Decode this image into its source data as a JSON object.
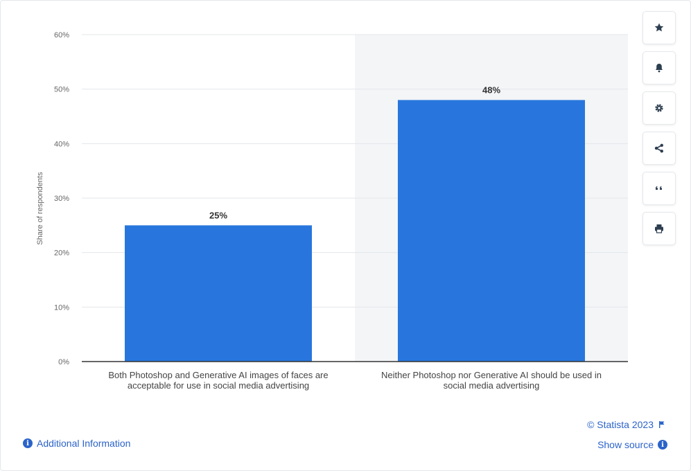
{
  "chart_data": {
    "type": "bar",
    "categories": [
      "Both Photoshop and Generative AI images of faces are acceptable for use in social media advertising",
      "Neither Photoshop nor Generative AI should be used in social media advertising"
    ],
    "category_lines": [
      [
        "Both Photoshop and Generative AI images of faces are",
        "acceptable for use in social media advertising"
      ],
      [
        "Neither Photoshop nor Generative AI should be used in",
        "social media advertising"
      ]
    ],
    "values": [
      25,
      48
    ],
    "data_labels": [
      "25%",
      "48%"
    ],
    "ylabel": "Share of respondents",
    "ylim": [
      0,
      60
    ],
    "yticks": [
      0,
      10,
      20,
      30,
      40,
      50,
      60
    ],
    "ytick_labels": [
      "0%",
      "10%",
      "20%",
      "30%",
      "40%",
      "50%",
      "60%"
    ],
    "grid": true,
    "highlighted_category_index": 1,
    "bar_color": "#2876dd",
    "highlight_band_color": "#f4f5f7"
  },
  "toolbar": {
    "buttons": [
      {
        "name": "favorite",
        "icon": "star-icon"
      },
      {
        "name": "notification",
        "icon": "bell-icon"
      },
      {
        "name": "settings",
        "icon": "gear-icon"
      },
      {
        "name": "share",
        "icon": "share-icon"
      },
      {
        "name": "cite",
        "icon": "quote-icon"
      },
      {
        "name": "print",
        "icon": "printer-icon"
      }
    ],
    "icon_color": "#2d3e50"
  },
  "footer": {
    "additional_info": "Additional Information",
    "copyright": "© Statista 2023",
    "show_source": "Show source"
  },
  "accent_color": "#2b63c9"
}
